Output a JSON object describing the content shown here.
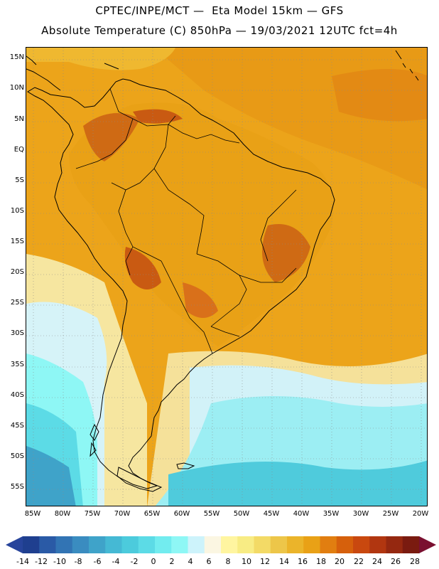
{
  "header": {
    "title_line1": "CPTEC/INPE/MCT —  Eta Model 15km — GFS",
    "title_line2": "Absolute Temperature (C) 850hPa — 19/03/2021 12UTC fct=4h"
  },
  "map": {
    "region": "South America",
    "variable": "Absolute Temperature at 850hPa",
    "lat_labels": [
      "15N",
      "10N",
      "5N",
      "EQ",
      "5S",
      "10S",
      "15S",
      "20S",
      "25S",
      "30S",
      "35S",
      "40S",
      "45S",
      "50S",
      "55S"
    ],
    "lon_labels": [
      "85W",
      "80W",
      "75W",
      "70W",
      "65W",
      "60W",
      "55W",
      "50W",
      "45W",
      "40W",
      "35W",
      "30W",
      "25W",
      "20W"
    ],
    "grid": "dotted",
    "coastlines": true,
    "country_borders": true
  },
  "colorbar": {
    "labels": [
      "-14",
      "-12",
      "-10",
      "-8",
      "-6",
      "-4",
      "-2",
      "0",
      "2",
      "4",
      "6",
      "8",
      "10",
      "12",
      "14",
      "16",
      "18",
      "20",
      "22",
      "24",
      "26",
      "28"
    ],
    "colors": [
      "#1f3f8f",
      "#2a5aa6",
      "#3274b4",
      "#3a8cc0",
      "#3fa3c9",
      "#45b9d4",
      "#4ccbdc",
      "#5cdbe6",
      "#72ecef",
      "#8ef7f5",
      "#cdf3fb",
      "#fbf6e2",
      "#fff5a0",
      "#f8ec84",
      "#f3da66",
      "#edc649",
      "#ebb42a",
      "#e9a116",
      "#e17e10",
      "#d6600c",
      "#c9480f",
      "#b13610",
      "#952810",
      "#7a1b10"
    ],
    "underflow_color": "#27449b",
    "overflow_color": "#7a1030"
  }
}
